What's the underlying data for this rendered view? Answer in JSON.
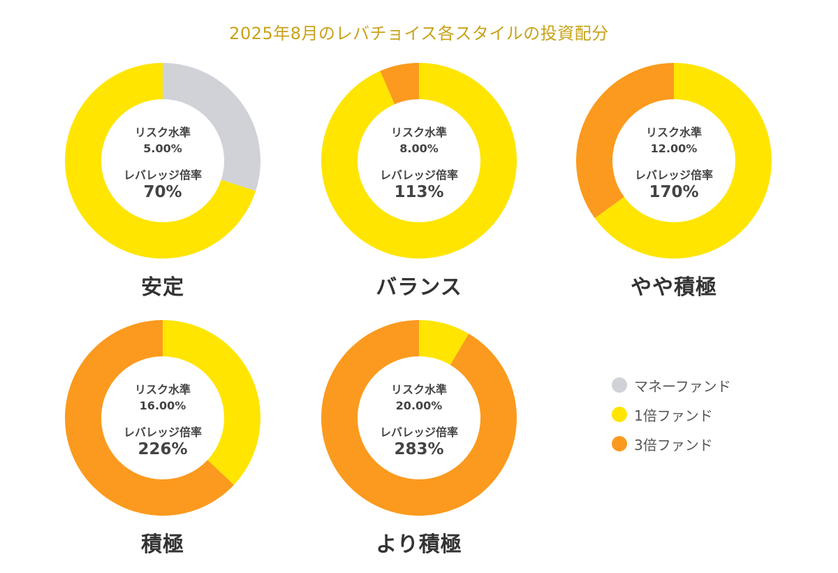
{
  "title": "2025年8月のレバチョイス各スタイルの投資配分",
  "colors": {
    "money": "#d0d2d8",
    "fund1x": "#ffe500",
    "fund3x": "#fb9a1e"
  },
  "legend": [
    {
      "label": "マネーファンド",
      "color": "#d0d2d8"
    },
    {
      "label": "1倍ファンド",
      "color": "#ffe500"
    },
    {
      "label": "3倍ファンド",
      "color": "#fb9a1e"
    }
  ],
  "chart_data": {
    "type": "pie",
    "variant": "donut",
    "series_names": [
      "マネーファンド",
      "1倍ファンド",
      "3倍ファンド"
    ],
    "charts": [
      {
        "name": "安定",
        "risk_label": "リスク水準",
        "risk_value": "5.00%",
        "leverage_label": "レバレッジ倍率",
        "leverage_value": "70%",
        "slices": [
          30,
          70,
          0
        ]
      },
      {
        "name": "バランス",
        "risk_label": "リスク水準",
        "risk_value": "8.00%",
        "leverage_label": "レバレッジ倍率",
        "leverage_value": "113%",
        "slices": [
          0,
          93.5,
          6.5
        ]
      },
      {
        "name": "やや積極",
        "risk_label": "リスク水準",
        "risk_value": "12.00%",
        "leverage_label": "レバレッジ倍率",
        "leverage_value": "170%",
        "slices": [
          0,
          65,
          35
        ]
      },
      {
        "name": "積極",
        "risk_label": "リスク水準",
        "risk_value": "16.00%",
        "leverage_label": "レバレッジ倍率",
        "leverage_value": "226%",
        "slices": [
          0,
          37,
          63
        ]
      },
      {
        "name": "より積極",
        "risk_label": "リスク水準",
        "risk_value": "20.00%",
        "leverage_label": "レバレッジ倍率",
        "leverage_value": "283%",
        "slices": [
          0,
          8.5,
          91.5
        ]
      }
    ]
  }
}
